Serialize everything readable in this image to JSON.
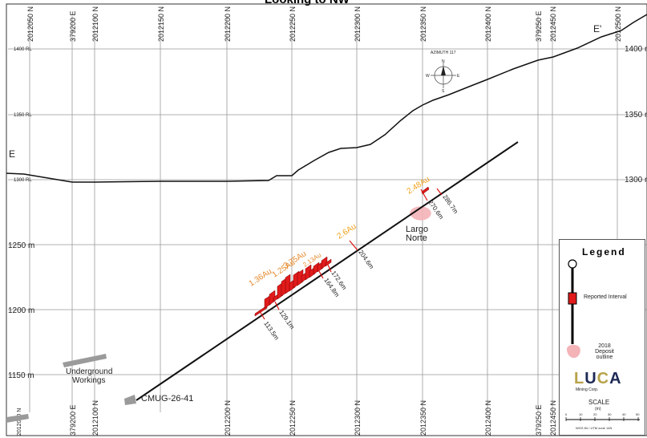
{
  "title": "Looking to NW",
  "top_labels": [
    {
      "text": "2012050 N"
    },
    {
      "text": "379200 E"
    },
    {
      "text": "2012100 N"
    },
    {
      "text": "2012150 N"
    },
    {
      "text": "2012200 N"
    },
    {
      "text": "2012250 N"
    },
    {
      "text": "2012300 N"
    },
    {
      "text": "2012350 N"
    },
    {
      "text": "2012400 N"
    },
    {
      "text": "379250 E"
    },
    {
      "text": "2012450 N"
    },
    {
      "text": "2012500 N"
    }
  ],
  "bottom_labels": [
    {
      "text": "2012050 N"
    },
    {
      "text": "379200 E"
    },
    {
      "text": "2012100 N"
    },
    {
      "text": "2012200 N"
    },
    {
      "text": "2012250 N"
    },
    {
      "text": "2012300 N"
    },
    {
      "text": "2012350 N"
    },
    {
      "text": "2012400 N"
    },
    {
      "text": "379250 E"
    },
    {
      "text": "2012450 N"
    }
  ],
  "left_rl": [
    "1400 RL",
    "1350 RL",
    "1300 RL"
  ],
  "left_m": [
    "1250 m",
    "1200 m",
    "1150 m"
  ],
  "right_rl": [
    "1400 m",
    "1350 m",
    "1300 m"
  ],
  "corner_label": "E'",
  "left_label": "E",
  "workings_label": [
    "Underground",
    "Workings"
  ],
  "drillhole_label": "CMUG-26-41",
  "deposit_label": [
    "Largo",
    "Norte"
  ],
  "compass": {
    "title": "AZIMUTH 117",
    "n": "N",
    "s": "S",
    "e": "E",
    "w": "W"
  },
  "intercepts": [
    {
      "grade": "1.36Au",
      "depth": "113.5m"
    },
    {
      "grade": "1.25Au",
      "depth": "129.1m"
    },
    {
      "grade": "3.75Au",
      "depth": "164.8m"
    },
    {
      "grade": "2.13Au",
      "depth": "172.6m"
    },
    {
      "grade": "2.6Au",
      "depth": "204.6m"
    },
    {
      "grade": "2.48Au",
      "depth": "270.6m"
    },
    {
      "grade": "",
      "depth": "286.7m"
    }
  ],
  "legend": {
    "header": "Legend",
    "interval": "Reported Interval",
    "deposit": [
      "2018",
      "Deposit",
      "outline"
    ],
    "company": "Mining Corp.",
    "scale_title": "SCALE",
    "scale_unit": "(m)",
    "scale_ticks": [
      "0",
      "10",
      "20",
      "30",
      "40",
      "50"
    ],
    "crs": "WGS 84 / UTM zone 14N"
  },
  "colors": {
    "interval": "#e11b1b",
    "deposit": "#f3b3b7",
    "grade": "#e58a2c",
    "grade_alt": "#f1a21c",
    "grid": "#999999",
    "logo_gold": "#b7a34a",
    "logo_blue": "#1e2a55"
  }
}
